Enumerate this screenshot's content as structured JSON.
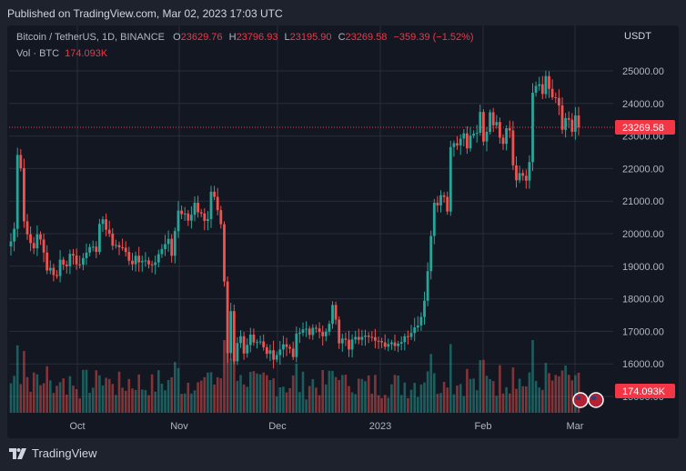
{
  "published": "Published on TradingView.com, Mar 02, 2023 17:03 UTC",
  "legend": {
    "symbol": "Bitcoin / TetherUS, 1D, BINANCE",
    "o_label": "O",
    "o_value": "23629.76",
    "h_label": "H",
    "h_value": "23796.93",
    "l_label": "L",
    "l_value": "23195.90",
    "c_label": "C",
    "c_value": "23269.58",
    "change": "−359.39 (−1.52%)"
  },
  "volume_legend": {
    "label": "Vol · BTC",
    "value": "174.093K"
  },
  "currency": "USDT",
  "brand": "TradingView",
  "colors": {
    "up": "#26a69a",
    "down": "#ef5350",
    "last": "#f23645",
    "bg": "#131722",
    "grid": "#2a2e39"
  },
  "chart_data": {
    "type": "candlestick",
    "ylim": [
      15000,
      25500
    ],
    "y_ticks": [
      "25000.00",
      "24000.00",
      "23000.00",
      "22000.00",
      "21000.00",
      "20000.00",
      "19000.00",
      "18000.00",
      "17000.00",
      "16000.00",
      "15000.00"
    ],
    "x_ticks": [
      "Oct",
      "Nov",
      "Dec",
      "2023",
      "Feb",
      "Mar"
    ],
    "last_price_label": "23269.58",
    "last_volume_label": "174.093K",
    "closes": [
      19760,
      20150,
      22420,
      22010,
      20380,
      19980,
      19710,
      19550,
      19980,
      19820,
      19420,
      18870,
      18950,
      18730,
      18700,
      19200,
      19050,
      19000,
      19380,
      19330,
      19060,
      19050,
      19250,
      19420,
      19590,
      19600,
      19440,
      20300,
      20440,
      20120,
      20000,
      19630,
      19650,
      19580,
      19570,
      19440,
      19170,
      19060,
      19320,
      19120,
      19160,
      19180,
      19060,
      19040,
      19120,
      19370,
      19530,
      19680,
      19840,
      19320,
      20080,
      20710,
      20600,
      20620,
      20400,
      20580,
      20950,
      20660,
      20620,
      20390,
      20450,
      21290,
      21130,
      20720,
      20290,
      18530,
      16330,
      17620,
      16080,
      16640,
      16850,
      16320,
      16580,
      16900,
      16660,
      16670,
      16690,
      16510,
      16310,
      16420,
      16130,
      16270,
      16440,
      16600,
      16520,
      16470,
      16210,
      16930,
      16960,
      17060,
      17080,
      16890,
      17110,
      17090,
      16980,
      16850,
      16990,
      17230,
      17810,
      17360,
      16630,
      16780,
      16740,
      16440,
      16750,
      16830,
      16740,
      16830,
      16870,
      16830,
      16820,
      16710,
      16700,
      16660,
      16530,
      16610,
      16660,
      16550,
      16620,
      16670,
      16850,
      16830,
      16950,
      17120,
      17180,
      17440,
      17940,
      18850,
      19930,
      20950,
      20870,
      21180,
      21130,
      20680,
      22660,
      22780,
      22710,
      22920,
      23080,
      22620,
      23010,
      23070,
      23100,
      23740,
      22830,
      23130,
      23730,
      23330,
      23430,
      22950,
      22760,
      23240,
      23170,
      22100,
      21640,
      21860,
      21780,
      21630,
      22200,
      24330,
      24540,
      24590,
      24290,
      24840,
      24450,
      24190,
      24170,
      23940,
      23190,
      23550,
      23500,
      23130,
      23630,
      23270
    ],
    "volume_scale_max": 500000
  }
}
